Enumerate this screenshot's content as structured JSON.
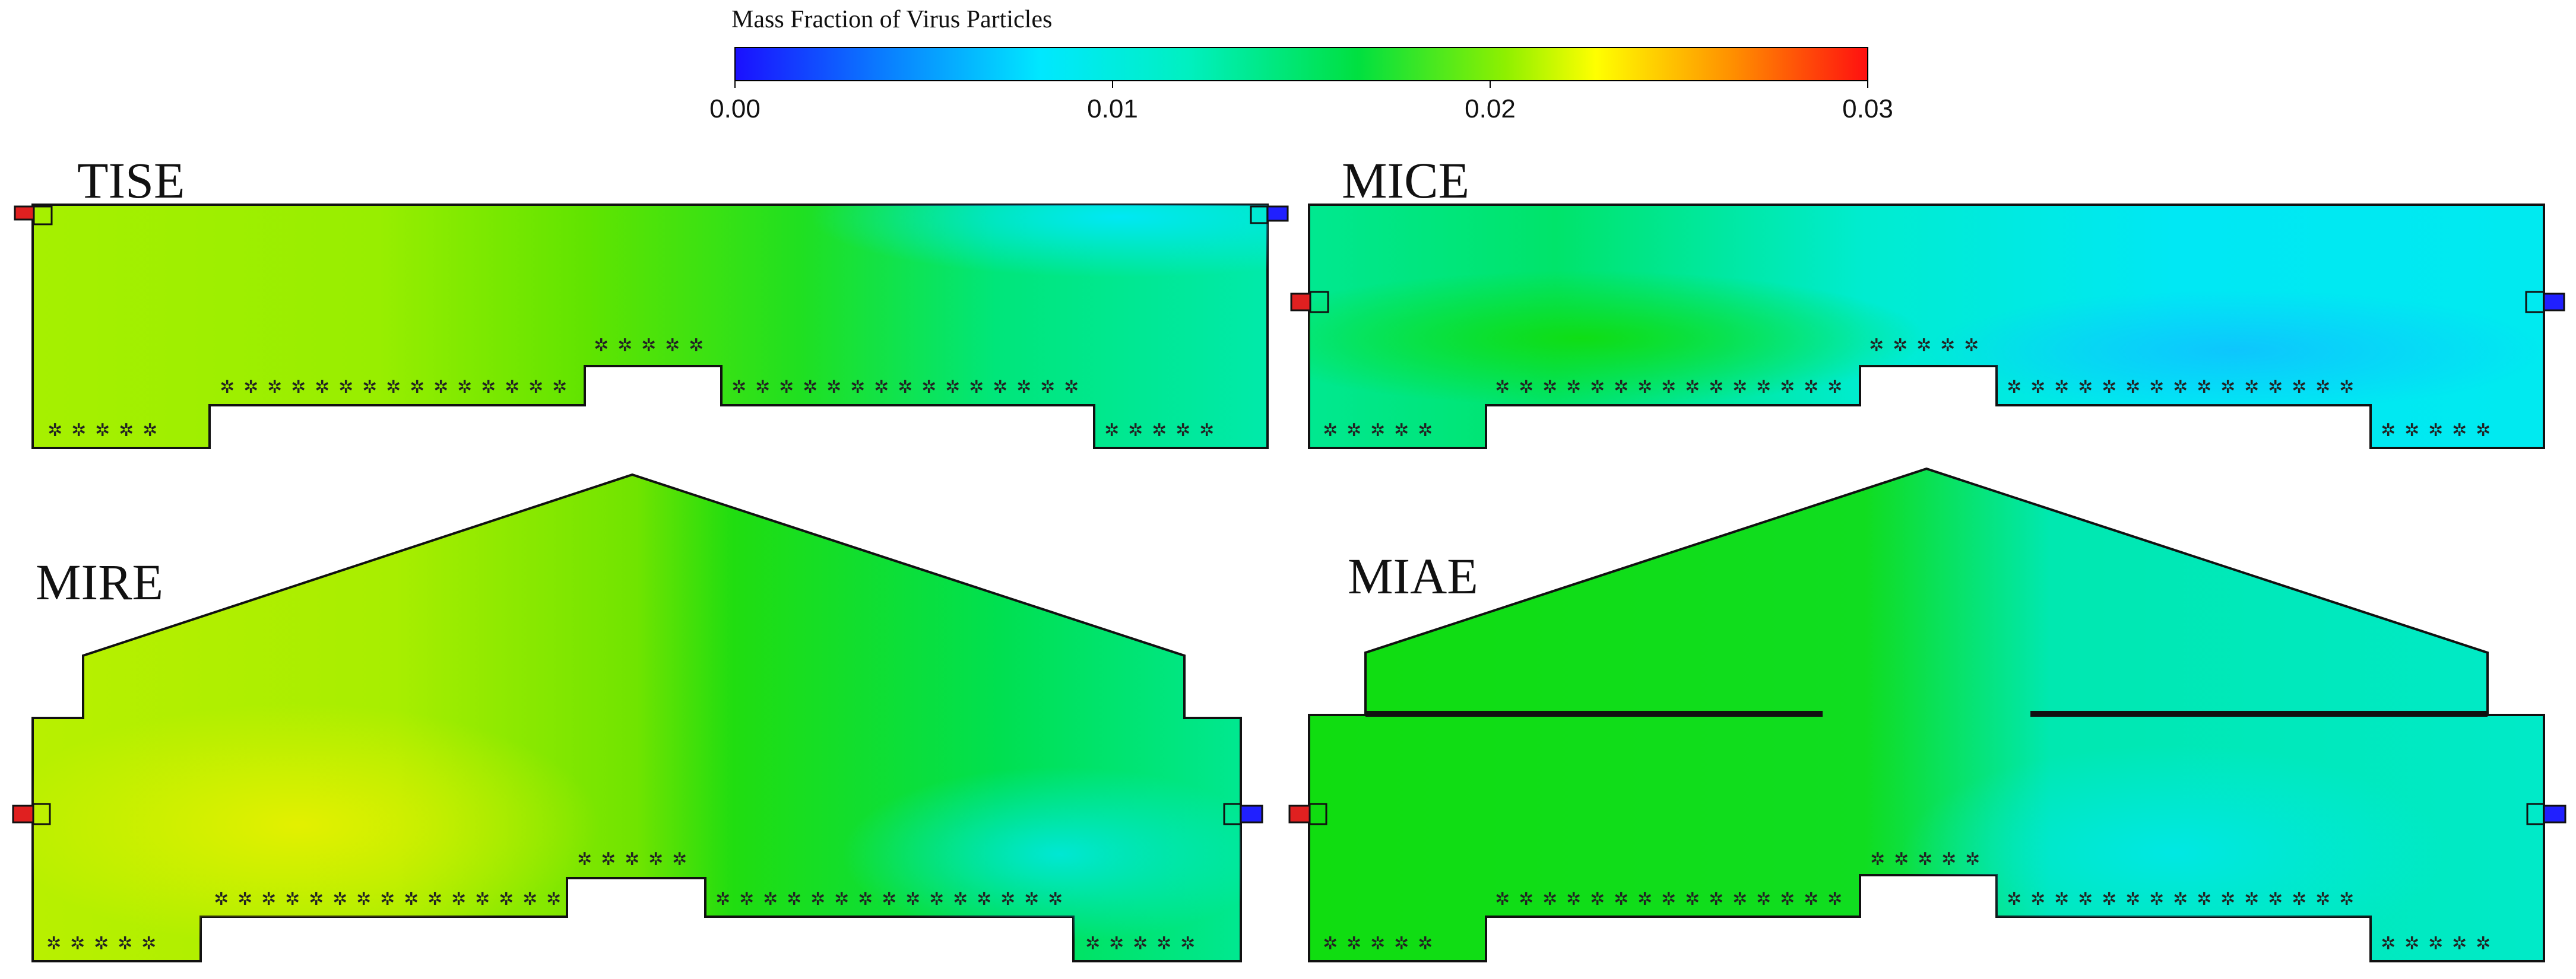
{
  "colorbar": {
    "title": "Mass Fraction of Virus Particles",
    "min": 0.0,
    "max": 0.03,
    "ticks": [
      {
        "value": 0.0,
        "label": "0.00"
      },
      {
        "value": 0.01,
        "label": "0.01"
      },
      {
        "value": 0.02,
        "label": "0.02"
      },
      {
        "value": 0.03,
        "label": "0.03"
      }
    ],
    "colors": [
      "#1a10ff",
      "#0a7cff",
      "#00e8ff",
      "#00f0c0",
      "#00e040",
      "#8ef000",
      "#ffff00",
      "#ff9000",
      "#ff1010"
    ]
  },
  "panels": [
    {
      "label": "TISE",
      "ambient_value": 0.019
    },
    {
      "label": "MICE",
      "ambient_value": 0.012
    },
    {
      "label": "MIRE",
      "ambient_value": 0.02
    },
    {
      "label": "MIAE",
      "ambient_value": 0.016
    }
  ],
  "seat_glyph": "✲"
}
